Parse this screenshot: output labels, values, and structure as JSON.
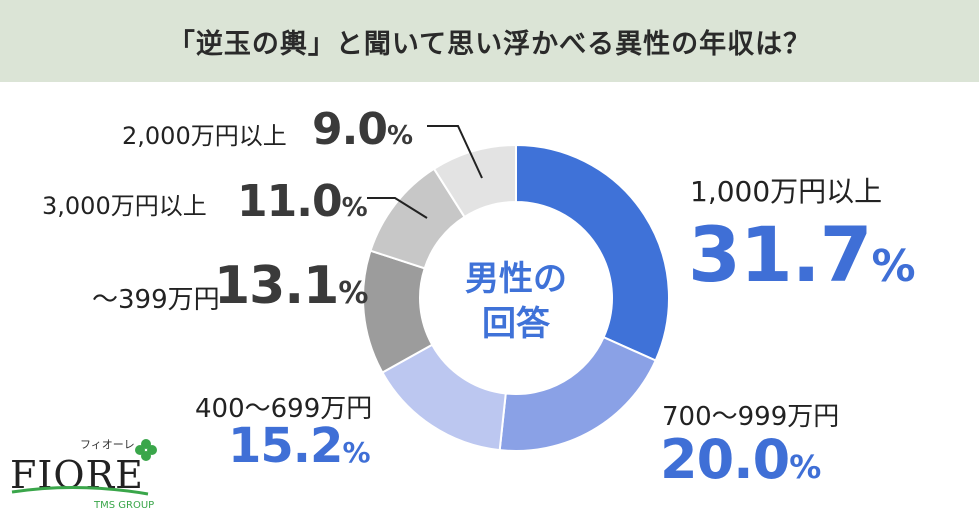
{
  "title": "「逆玉の輿」と聞いて思い浮かべる異性の年収は？",
  "chart_data": {
    "type": "pie",
    "center_label": [
      "男性の",
      "回答"
    ],
    "slices": [
      {
        "category": "1,000万円以上",
        "value": 31.7,
        "color": "#3f72d8"
      },
      {
        "category": "700〜999万円",
        "value": 20.0,
        "color": "#8aa1e6"
      },
      {
        "category": "400〜699万円",
        "value": 15.2,
        "color": "#bcc7f0"
      },
      {
        "category": "〜399万円",
        "value": 13.1,
        "color": "#9c9c9c"
      },
      {
        "category": "3,000万円以上",
        "value": 11.0,
        "color": "#c7c7c7"
      },
      {
        "category": "2,000万円以上",
        "value": 9.0,
        "color": "#e3e3e3"
      }
    ]
  },
  "labels": {
    "s1": {
      "category": "1,000万円以上",
      "number": "31.7",
      "unit": "%"
    },
    "s2": {
      "category": "700〜999万円",
      "number": "20.0",
      "unit": "%"
    },
    "s3": {
      "category": "400〜699万円",
      "number": "15.2",
      "unit": "%"
    },
    "s4": {
      "category": "〜399万円",
      "number": "13.1",
      "unit": "%"
    },
    "s5": {
      "category": "3,000万円以上",
      "number": "11.0",
      "unit": "%"
    },
    "s6": {
      "category": "2,000万円以上",
      "number": "9.0",
      "unit": "%"
    }
  },
  "logo": {
    "kana": "フィオーレ",
    "name": "FIORE",
    "group": "TMS GROUP",
    "accent_color": "#3aa64a"
  }
}
